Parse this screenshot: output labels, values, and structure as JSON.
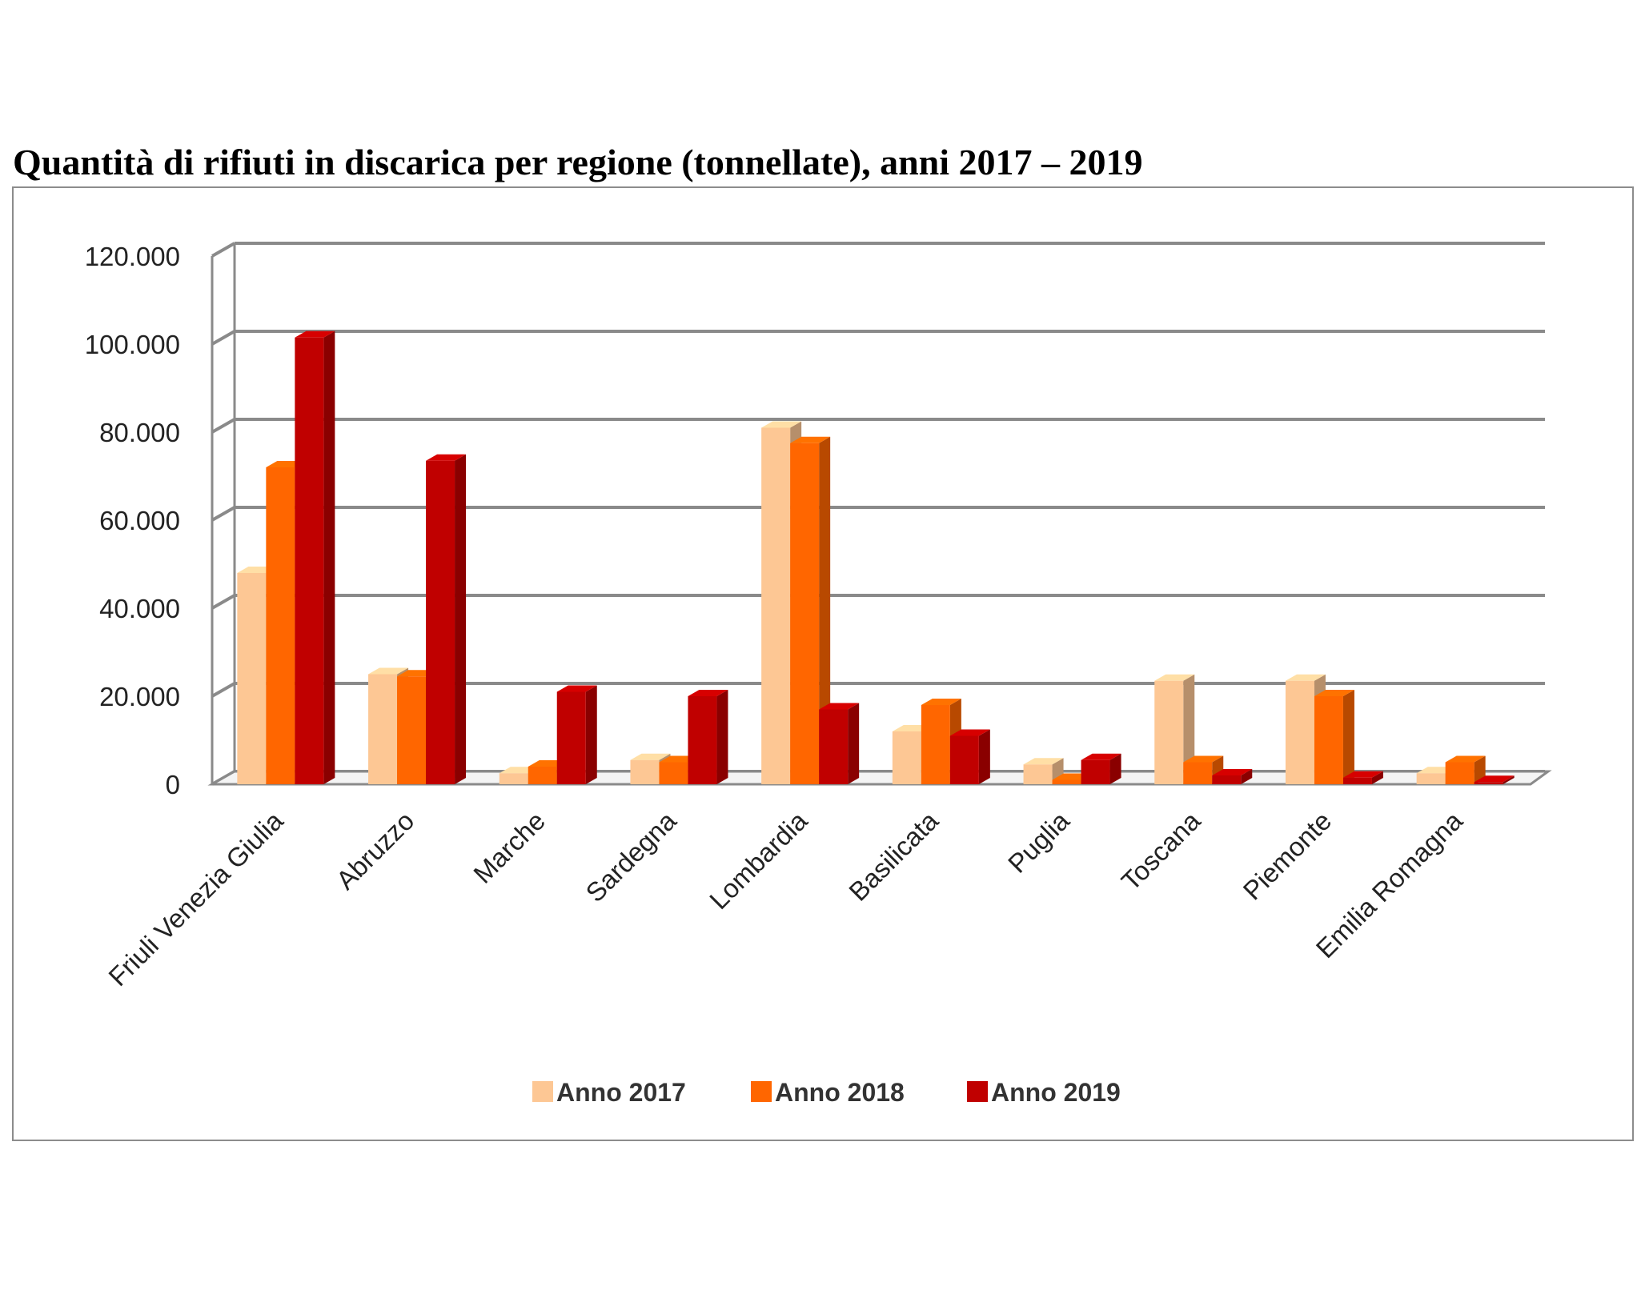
{
  "chart_data": {
    "type": "bar",
    "title": "Quantità di rifiuti in discarica per regione (tonnellate), anni 2017 – 2019",
    "categories": [
      "Friuli Venezia Giulia",
      "Abruzzo",
      "Marche",
      "Sardegna",
      "Lombardia",
      "Basilicata",
      "Puglia",
      "Toscana",
      "Piemonte",
      "Emilia Romagna"
    ],
    "series": [
      {
        "name": "Anno 2017",
        "color": "#FDC794",
        "values": [
          48000,
          25000,
          2500,
          5500,
          81000,
          12000,
          4500,
          23500,
          23500,
          2500
        ]
      },
      {
        "name": "Anno 2018",
        "color": "#FF6600",
        "values": [
          72000,
          24500,
          4000,
          5000,
          77500,
          18000,
          1000,
          5000,
          20000,
          5000
        ]
      },
      {
        "name": "Anno 2019",
        "color": "#C00000",
        "values": [
          101500,
          73500,
          21000,
          20000,
          17000,
          11000,
          5500,
          2000,
          1500,
          500
        ]
      }
    ],
    "y_ticks": [
      "0",
      "20.000",
      "40.000",
      "60.000",
      "80.000",
      "100.000",
      "120.000"
    ],
    "ylim": [
      0,
      120000
    ],
    "grid": true,
    "legend_position": "bottom"
  }
}
